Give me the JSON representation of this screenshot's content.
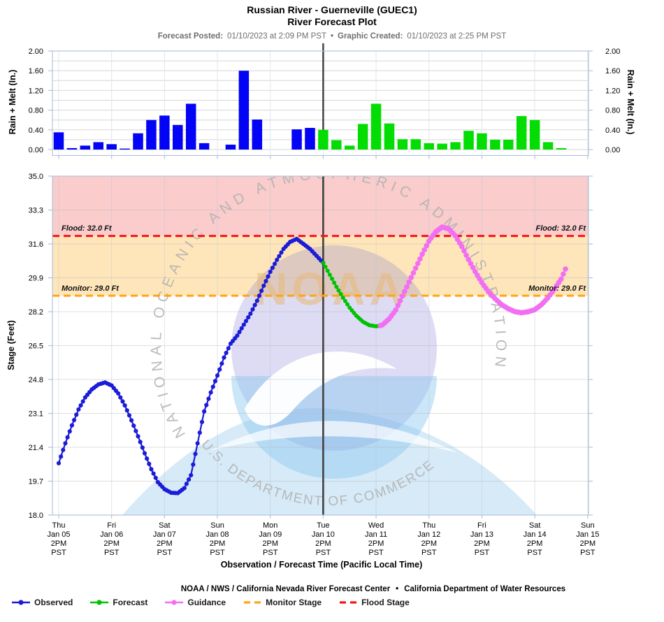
{
  "header": {
    "title_line1": "Russian River - Guerneville (GUEC1)",
    "title_line2": "River Forecast Plot",
    "posted_label": "Forecast Posted:",
    "posted_value": "01/10/2023 at 2:09 PM PST",
    "separator": "•",
    "created_label": "Graphic Created:",
    "created_value": "01/10/2023 at 2:25 PM PST"
  },
  "watermark": {
    "arc_text_top": "NATIONAL OCEANIC AND ATMOSPHERIC ADMINISTRATION",
    "arc_text_bottom": "U.S. DEPARTMENT OF COMMERCE",
    "letters": "NOAA"
  },
  "legend": {
    "items": [
      {
        "label": "Observed",
        "color": "#1c1cd8",
        "type": "line"
      },
      {
        "label": "Forecast",
        "color": "#00c203",
        "type": "line"
      },
      {
        "label": "Guidance",
        "color": "#f26ef2",
        "type": "line"
      },
      {
        "label": "Monitor Stage",
        "color": "#ffa414",
        "type": "dash"
      },
      {
        "label": "Flood Stage",
        "color": "#fa1414",
        "type": "dash"
      }
    ]
  },
  "footer": {
    "credit_left": "NOAA / NWS / California Nevada River Forecast Center",
    "bullet": "•",
    "credit_right": "California Department of Water Resources"
  },
  "chart_data": [
    {
      "type": "bar",
      "ylabel": "Rain + Melt (In.)",
      "ylabel_right": "Rain + Melt (In.)",
      "ylim": [
        0.0,
        2.0
      ],
      "yticks": [
        0.0,
        0.4,
        0.8,
        1.2,
        1.6,
        2.0
      ],
      "tick_decimals": 2,
      "bin_hours": 6,
      "x_start": "Thu Jan 05 2PM PST",
      "x_end": "Sun Jan 15 2PM PST",
      "now_line_days": 5.0,
      "grid": true,
      "series": [
        {
          "name": "Observed Rain",
          "color": "#0303f5",
          "start_day": 0.0,
          "values": [
            0.35,
            0.03,
            0.08,
            0.15,
            0.11,
            0.02,
            0.33,
            0.6,
            0.69,
            0.5,
            0.93,
            0.13,
            0.0,
            0.1,
            1.6,
            0.61,
            0.0,
            0.0,
            0.41,
            0.44
          ]
        },
        {
          "name": "Forecast Rain",
          "color": "#03dd03",
          "start_day": 5.0,
          "values": [
            0.4,
            0.19,
            0.08,
            0.52,
            0.93,
            0.53,
            0.21,
            0.21,
            0.13,
            0.12,
            0.15,
            0.38,
            0.33,
            0.2,
            0.2,
            0.68,
            0.6,
            0.15,
            0.03
          ]
        }
      ]
    },
    {
      "type": "line",
      "ylabel": "Stage (Feet)",
      "xlabel": "Observation / Forecast Time (Pacific Local Time)",
      "ylim": [
        18.0,
        35.0
      ],
      "yticks": [
        35.0,
        33.3,
        31.6,
        29.9,
        28.2,
        26.5,
        24.8,
        23.1,
        21.4,
        19.7,
        18.0
      ],
      "tick_decimals": 1,
      "grid": true,
      "now_line_days": 5.0,
      "x_tick_labels": [
        [
          "Thu",
          "Jan 05",
          "2PM",
          "PST"
        ],
        [
          "Fri",
          "Jan 06",
          "2PM",
          "PST"
        ],
        [
          "Sat",
          "Jan 07",
          "2PM",
          "PST"
        ],
        [
          "Sun",
          "Jan 08",
          "2PM",
          "PST"
        ],
        [
          "Mon",
          "Jan 09",
          "2PM",
          "PST"
        ],
        [
          "Tue",
          "Jan 10",
          "2PM",
          "PST"
        ],
        [
          "Wed",
          "Jan 11",
          "2PM",
          "PST"
        ],
        [
          "Thu",
          "Jan 12",
          "2PM",
          "PST"
        ],
        [
          "Fri",
          "Jan 13",
          "2PM",
          "PST"
        ],
        [
          "Sat",
          "Jan 14",
          "2PM",
          "PST"
        ],
        [
          "Sun",
          "Jan 15",
          "2PM",
          "PST"
        ]
      ],
      "flood": {
        "label": "Flood: 32.0 Ft",
        "value": 32.0,
        "line_color": "#fa1414",
        "band_color": "rgba(230,0,0,0.20)"
      },
      "monitor": {
        "label": "Monitor: 29.0 Ft",
        "value": 29.0,
        "line_color": "#ffa414",
        "band_color": "rgba(255,163,0,0.27)"
      },
      "series": [
        {
          "name": "Observed",
          "color": "#1c1cd8",
          "dot_r": 3.1,
          "points": [
            [
              0,
              20.6
            ],
            [
              0.125,
              21.6
            ],
            [
              0.25,
              22.5
            ],
            [
              0.375,
              23.3
            ],
            [
              0.5,
              23.9
            ],
            [
              0.625,
              24.3
            ],
            [
              0.75,
              24.55
            ],
            [
              0.875,
              24.65
            ],
            [
              1.0,
              24.5
            ],
            [
              1.125,
              24.1
            ],
            [
              1.25,
              23.5
            ],
            [
              1.375,
              22.75
            ],
            [
              1.5,
              21.95
            ],
            [
              1.625,
              21.1
            ],
            [
              1.75,
              20.3
            ],
            [
              1.875,
              19.65
            ],
            [
              2.0,
              19.3
            ],
            [
              2.125,
              19.12
            ],
            [
              2.25,
              19.1
            ],
            [
              2.375,
              19.35
            ],
            [
              2.5,
              20.0
            ],
            [
              2.625,
              21.6
            ],
            [
              2.75,
              23.2
            ],
            [
              2.875,
              24.15
            ],
            [
              3.0,
              25.0
            ],
            [
              3.125,
              25.9
            ],
            [
              3.25,
              26.6
            ],
            [
              3.375,
              27.0
            ],
            [
              3.5,
              27.55
            ],
            [
              3.625,
              28.1
            ],
            [
              3.75,
              28.75
            ],
            [
              3.875,
              29.5
            ],
            [
              4.0,
              30.2
            ],
            [
              4.125,
              30.8
            ],
            [
              4.25,
              31.35
            ],
            [
              4.375,
              31.7
            ],
            [
              4.5,
              31.85
            ],
            [
              4.625,
              31.6
            ],
            [
              4.75,
              31.35
            ],
            [
              4.875,
              31.0
            ],
            [
              5.0,
              30.65
            ]
          ]
        },
        {
          "name": "Forecast",
          "color": "#00c203",
          "dot_r": 3.0,
          "points": [
            [
              5.0,
              30.65
            ],
            [
              5.125,
              30.05
            ],
            [
              5.25,
              29.45
            ],
            [
              5.375,
              28.9
            ],
            [
              5.5,
              28.4
            ],
            [
              5.625,
              28.0
            ],
            [
              5.75,
              27.7
            ],
            [
              5.875,
              27.52
            ],
            [
              6.0,
              27.47
            ],
            [
              6.08,
              27.5
            ]
          ]
        },
        {
          "name": "Guidance",
          "color": "#f26ef2",
          "dot_r": 3.8,
          "points": [
            [
              6.08,
              27.5
            ],
            [
              6.125,
              27.55
            ],
            [
              6.25,
              27.85
            ],
            [
              6.375,
              28.3
            ],
            [
              6.5,
              29.0
            ],
            [
              6.625,
              29.7
            ],
            [
              6.75,
              30.4
            ],
            [
              6.875,
              31.1
            ],
            [
              7.0,
              31.75
            ],
            [
              7.125,
              32.2
            ],
            [
              7.25,
              32.45
            ],
            [
              7.375,
              32.35
            ],
            [
              7.5,
              32.0
            ],
            [
              7.625,
              31.45
            ],
            [
              7.75,
              30.8
            ],
            [
              7.875,
              30.2
            ],
            [
              8.0,
              29.65
            ],
            [
              8.125,
              29.2
            ],
            [
              8.25,
              28.85
            ],
            [
              8.375,
              28.55
            ],
            [
              8.5,
              28.35
            ],
            [
              8.625,
              28.2
            ],
            [
              8.75,
              28.15
            ],
            [
              8.875,
              28.2
            ],
            [
              9.0,
              28.3
            ],
            [
              9.125,
              28.55
            ],
            [
              9.25,
              28.9
            ],
            [
              9.375,
              29.35
            ],
            [
              9.5,
              29.85
            ],
            [
              9.59,
              30.4
            ]
          ]
        }
      ]
    }
  ]
}
